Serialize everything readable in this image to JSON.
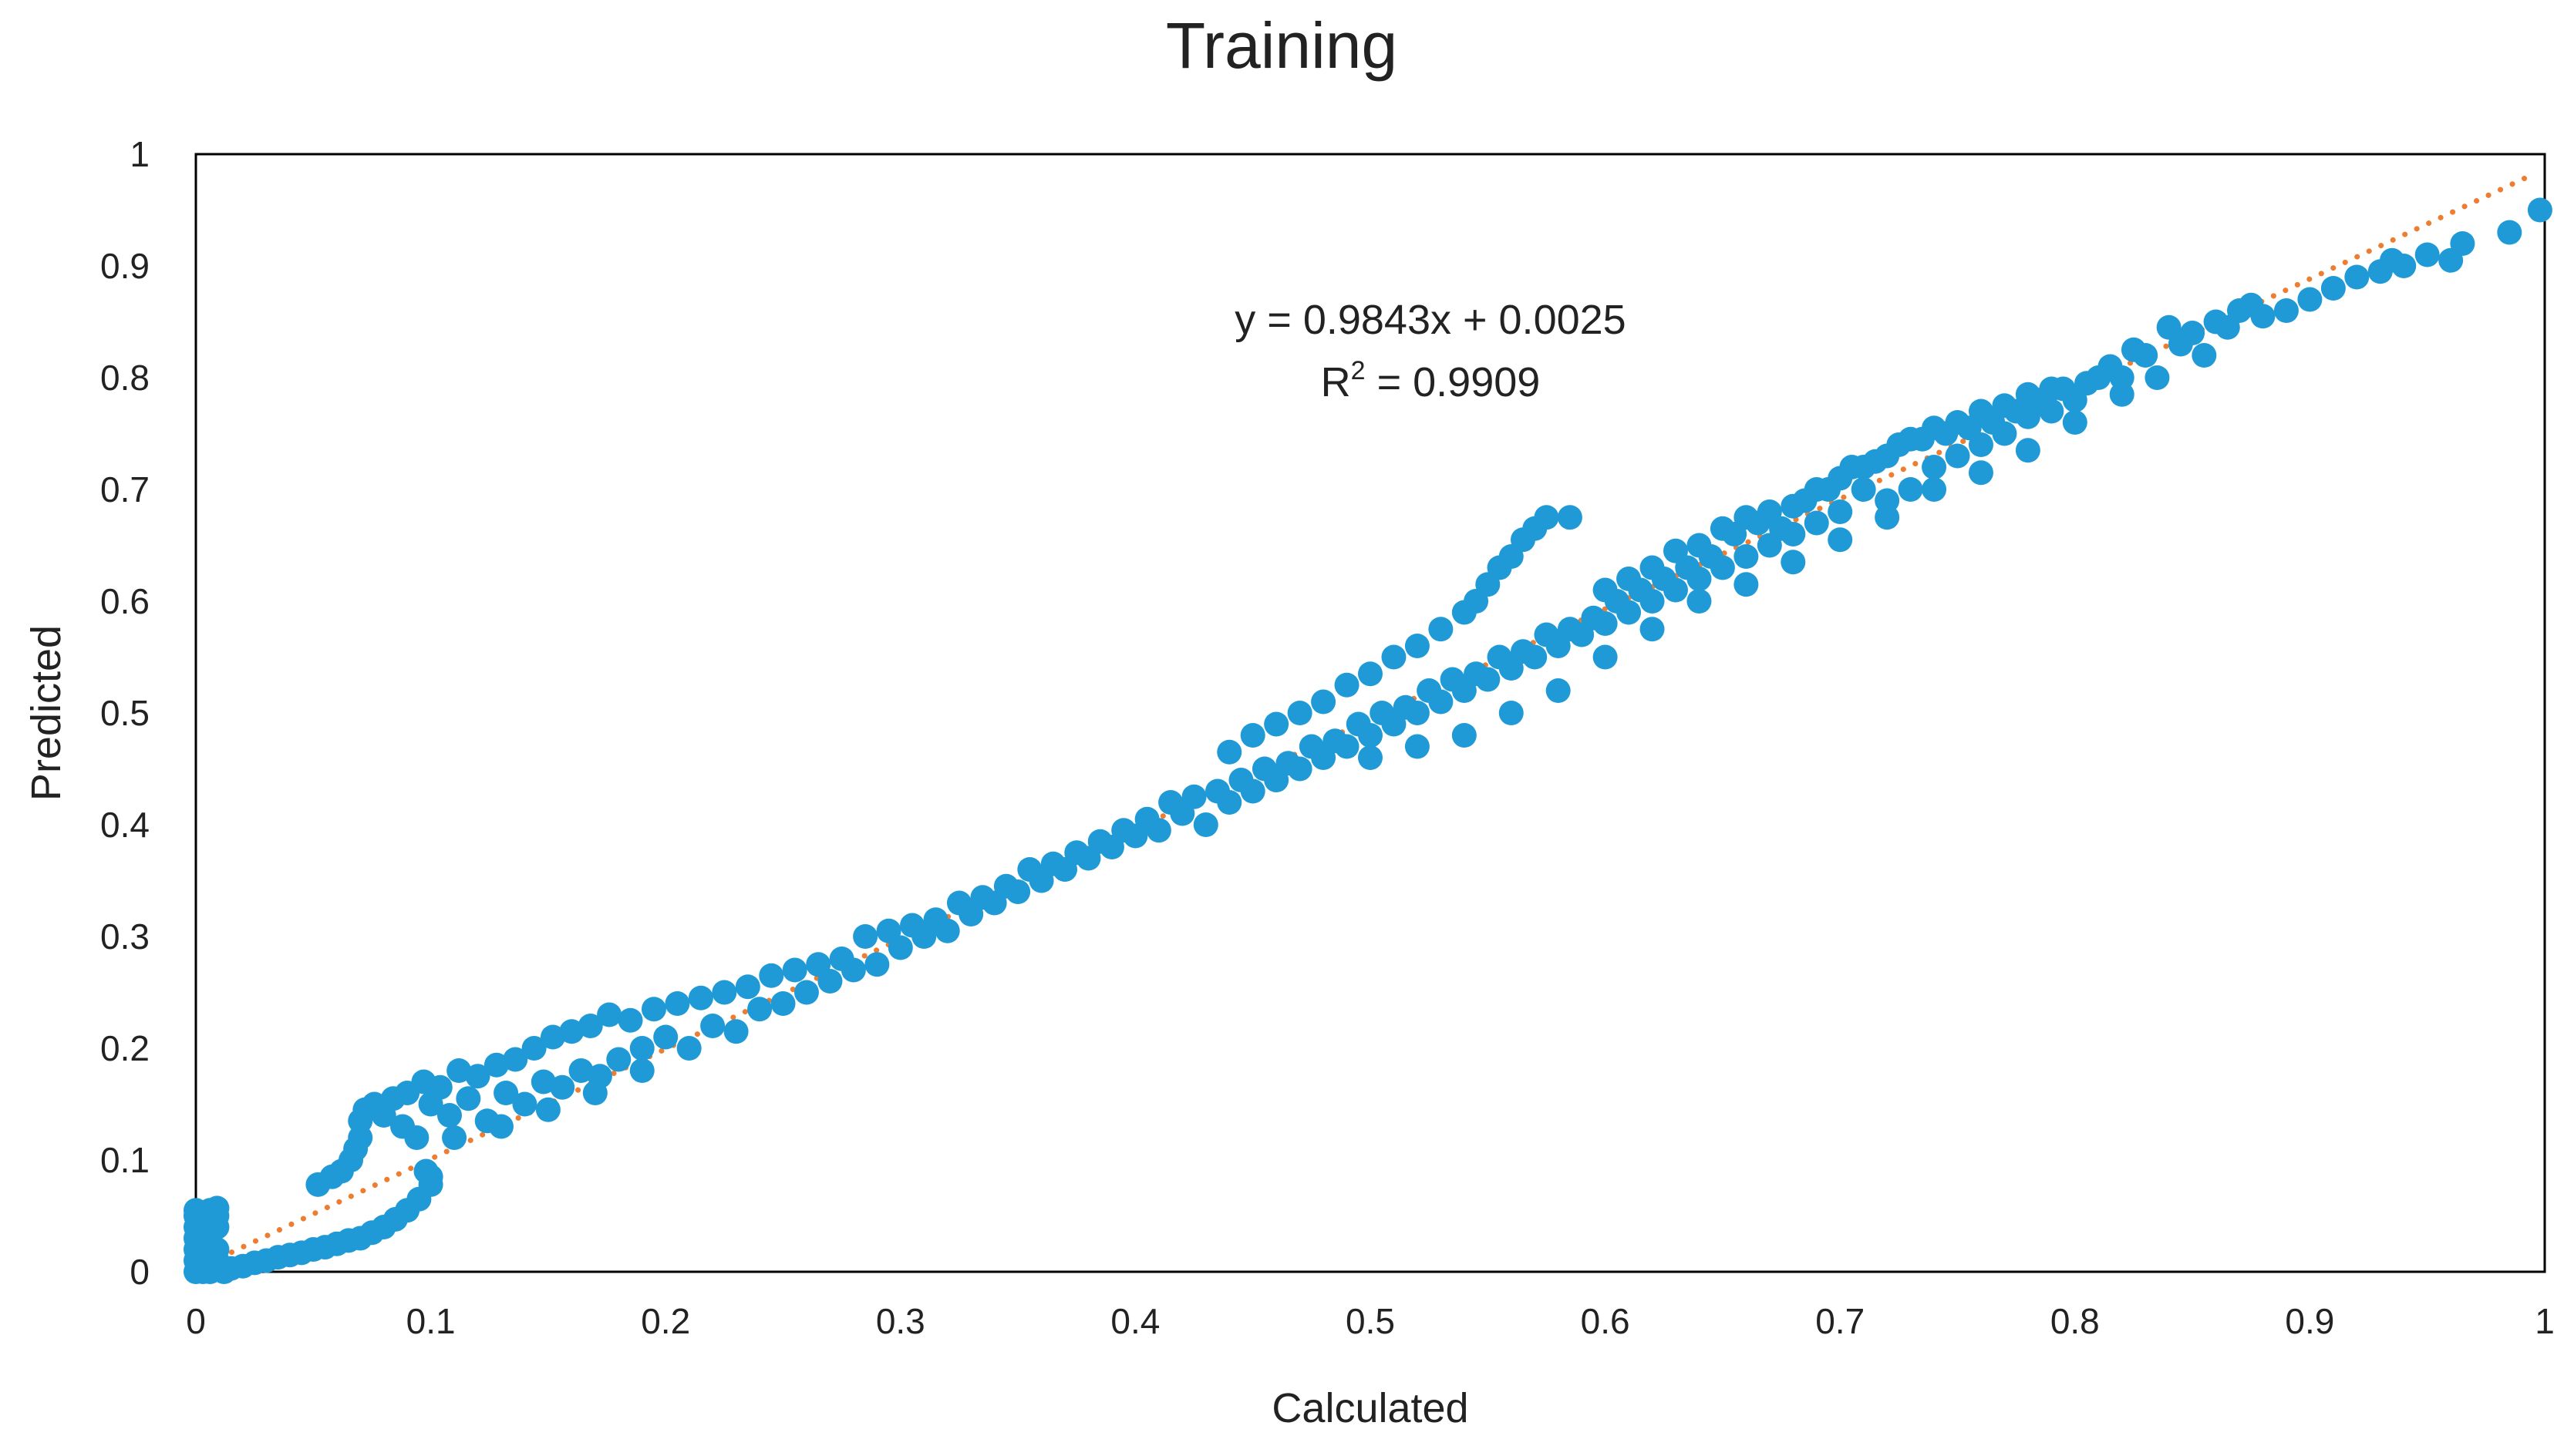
{
  "chart_data": {
    "type": "scatter",
    "title": "Training",
    "xlabel": "Calculated",
    "ylabel": "Predicted",
    "xlim": [
      0,
      1
    ],
    "ylim": [
      0,
      1
    ],
    "x_ticks": [
      "0",
      "0.1",
      "0.2",
      "0.3",
      "0.4",
      "0.5",
      "0.6",
      "0.7",
      "0.8",
      "0.9",
      "1"
    ],
    "y_ticks": [
      "0",
      "0.1",
      "0.2",
      "0.3",
      "0.4",
      "0.5",
      "0.6",
      "0.7",
      "0.8",
      "0.9",
      "1"
    ],
    "grid": false,
    "legend": "none",
    "colors": {
      "points": "#1f9ad6",
      "trendline": "#ed7d31",
      "frame": "#000000"
    },
    "trendline": {
      "style": "dotted",
      "slope": 0.9843,
      "intercept": 0.0025,
      "equation": "y = 0.9843x + 0.0025",
      "r2_label": "R",
      "r2_sup": "2",
      "r2_value": " = 0.9909"
    },
    "series": [
      {
        "points": [
          [
            0.0,
            0.0
          ],
          [
            0.0,
            0.01
          ],
          [
            0.0,
            0.02
          ],
          [
            0.0,
            0.03
          ],
          [
            0.0,
            0.04
          ],
          [
            0.0,
            0.05
          ],
          [
            0.0,
            0.055
          ],
          [
            0.003,
            0.0
          ],
          [
            0.003,
            0.01
          ],
          [
            0.003,
            0.02
          ],
          [
            0.003,
            0.03
          ],
          [
            0.003,
            0.04
          ],
          [
            0.003,
            0.05
          ],
          [
            0.006,
            0.0
          ],
          [
            0.006,
            0.01
          ],
          [
            0.006,
            0.02
          ],
          [
            0.006,
            0.03
          ],
          [
            0.006,
            0.045
          ],
          [
            0.006,
            0.055
          ],
          [
            0.009,
            0.01
          ],
          [
            0.009,
            0.02
          ],
          [
            0.009,
            0.04
          ],
          [
            0.009,
            0.05
          ],
          [
            0.009,
            0.057
          ],
          [
            0.012,
            0.0
          ],
          [
            0.015,
            0.003
          ],
          [
            0.02,
            0.005
          ],
          [
            0.025,
            0.008
          ],
          [
            0.03,
            0.01
          ],
          [
            0.035,
            0.013
          ],
          [
            0.04,
            0.015
          ],
          [
            0.045,
            0.017
          ],
          [
            0.05,
            0.02
          ],
          [
            0.055,
            0.022
          ],
          [
            0.06,
            0.025
          ],
          [
            0.065,
            0.028
          ],
          [
            0.07,
            0.03
          ],
          [
            0.075,
            0.035
          ],
          [
            0.08,
            0.04
          ],
          [
            0.085,
            0.047
          ],
          [
            0.09,
            0.055
          ],
          [
            0.095,
            0.065
          ],
          [
            0.1,
            0.078
          ],
          [
            0.1,
            0.085
          ],
          [
            0.098,
            0.09
          ],
          [
            0.052,
            0.078
          ],
          [
            0.058,
            0.085
          ],
          [
            0.062,
            0.09
          ],
          [
            0.066,
            0.1
          ],
          [
            0.068,
            0.11
          ],
          [
            0.07,
            0.12
          ],
          [
            0.07,
            0.135
          ],
          [
            0.072,
            0.145
          ],
          [
            0.076,
            0.15
          ],
          [
            0.08,
            0.14
          ],
          [
            0.084,
            0.155
          ],
          [
            0.088,
            0.13
          ],
          [
            0.09,
            0.16
          ],
          [
            0.094,
            0.12
          ],
          [
            0.097,
            0.17
          ],
          [
            0.1,
            0.15
          ],
          [
            0.104,
            0.165
          ],
          [
            0.108,
            0.14
          ],
          [
            0.112,
            0.18
          ],
          [
            0.116,
            0.155
          ],
          [
            0.12,
            0.175
          ],
          [
            0.124,
            0.135
          ],
          [
            0.128,
            0.185
          ],
          [
            0.132,
            0.16
          ],
          [
            0.136,
            0.19
          ],
          [
            0.14,
            0.15
          ],
          [
            0.144,
            0.2
          ],
          [
            0.148,
            0.17
          ],
          [
            0.152,
            0.21
          ],
          [
            0.156,
            0.165
          ],
          [
            0.16,
            0.215
          ],
          [
            0.164,
            0.18
          ],
          [
            0.168,
            0.22
          ],
          [
            0.172,
            0.175
          ],
          [
            0.176,
            0.23
          ],
          [
            0.18,
            0.19
          ],
          [
            0.11,
            0.12
          ],
          [
            0.13,
            0.13
          ],
          [
            0.15,
            0.145
          ],
          [
            0.17,
            0.16
          ],
          [
            0.19,
            0.18
          ],
          [
            0.185,
            0.225
          ],
          [
            0.19,
            0.2
          ],
          [
            0.195,
            0.235
          ],
          [
            0.2,
            0.21
          ],
          [
            0.205,
            0.24
          ],
          [
            0.21,
            0.2
          ],
          [
            0.215,
            0.245
          ],
          [
            0.22,
            0.22
          ],
          [
            0.225,
            0.25
          ],
          [
            0.23,
            0.215
          ],
          [
            0.235,
            0.255
          ],
          [
            0.24,
            0.235
          ],
          [
            0.245,
            0.265
          ],
          [
            0.25,
            0.24
          ],
          [
            0.255,
            0.27
          ],
          [
            0.26,
            0.25
          ],
          [
            0.265,
            0.275
          ],
          [
            0.27,
            0.26
          ],
          [
            0.275,
            0.28
          ],
          [
            0.28,
            0.27
          ],
          [
            0.285,
            0.3
          ],
          [
            0.29,
            0.275
          ],
          [
            0.295,
            0.305
          ],
          [
            0.3,
            0.29
          ],
          [
            0.305,
            0.31
          ],
          [
            0.31,
            0.3
          ],
          [
            0.315,
            0.315
          ],
          [
            0.32,
            0.305
          ],
          [
            0.325,
            0.33
          ],
          [
            0.33,
            0.32
          ],
          [
            0.335,
            0.335
          ],
          [
            0.34,
            0.33
          ],
          [
            0.345,
            0.345
          ],
          [
            0.35,
            0.34
          ],
          [
            0.355,
            0.36
          ],
          [
            0.36,
            0.35
          ],
          [
            0.365,
            0.365
          ],
          [
            0.37,
            0.36
          ],
          [
            0.375,
            0.375
          ],
          [
            0.38,
            0.37
          ],
          [
            0.385,
            0.385
          ],
          [
            0.39,
            0.38
          ],
          [
            0.395,
            0.395
          ],
          [
            0.4,
            0.39
          ],
          [
            0.405,
            0.405
          ],
          [
            0.41,
            0.395
          ],
          [
            0.415,
            0.42
          ],
          [
            0.42,
            0.41
          ],
          [
            0.425,
            0.425
          ],
          [
            0.43,
            0.4
          ],
          [
            0.435,
            0.43
          ],
          [
            0.44,
            0.42
          ],
          [
            0.445,
            0.44
          ],
          [
            0.45,
            0.43
          ],
          [
            0.455,
            0.45
          ],
          [
            0.46,
            0.44
          ],
          [
            0.465,
            0.455
          ],
          [
            0.47,
            0.45
          ],
          [
            0.475,
            0.47
          ],
          [
            0.48,
            0.46
          ],
          [
            0.485,
            0.475
          ],
          [
            0.49,
            0.47
          ],
          [
            0.495,
            0.49
          ],
          [
            0.5,
            0.48
          ],
          [
            0.505,
            0.5
          ],
          [
            0.51,
            0.49
          ],
          [
            0.515,
            0.505
          ],
          [
            0.52,
            0.5
          ],
          [
            0.525,
            0.52
          ],
          [
            0.53,
            0.51
          ],
          [
            0.535,
            0.53
          ],
          [
            0.54,
            0.52
          ],
          [
            0.545,
            0.535
          ],
          [
            0.55,
            0.53
          ],
          [
            0.555,
            0.55
          ],
          [
            0.56,
            0.54
          ],
          [
            0.565,
            0.555
          ],
          [
            0.57,
            0.55
          ],
          [
            0.575,
            0.57
          ],
          [
            0.58,
            0.56
          ],
          [
            0.585,
            0.575
          ],
          [
            0.59,
            0.57
          ],
          [
            0.595,
            0.585
          ],
          [
            0.6,
            0.58
          ],
          [
            0.605,
            0.6
          ],
          [
            0.61,
            0.59
          ],
          [
            0.615,
            0.61
          ],
          [
            0.62,
            0.6
          ],
          [
            0.625,
            0.62
          ],
          [
            0.63,
            0.61
          ],
          [
            0.635,
            0.63
          ],
          [
            0.64,
            0.62
          ],
          [
            0.645,
            0.64
          ],
          [
            0.65,
            0.63
          ],
          [
            0.655,
            0.66
          ],
          [
            0.66,
            0.64
          ],
          [
            0.665,
            0.67
          ],
          [
            0.67,
            0.65
          ],
          [
            0.675,
            0.665
          ],
          [
            0.68,
            0.66
          ],
          [
            0.685,
            0.69
          ],
          [
            0.69,
            0.67
          ],
          [
            0.695,
            0.7
          ],
          [
            0.7,
            0.68
          ],
          [
            0.705,
            0.72
          ],
          [
            0.71,
            0.7
          ],
          [
            0.715,
            0.725
          ],
          [
            0.72,
            0.69
          ],
          [
            0.725,
            0.74
          ],
          [
            0.73,
            0.7
          ],
          [
            0.735,
            0.745
          ],
          [
            0.74,
            0.72
          ],
          [
            0.745,
            0.75
          ],
          [
            0.75,
            0.73
          ],
          [
            0.755,
            0.755
          ],
          [
            0.76,
            0.74
          ],
          [
            0.765,
            0.76
          ],
          [
            0.77,
            0.75
          ],
          [
            0.775,
            0.77
          ],
          [
            0.78,
            0.765
          ],
          [
            0.785,
            0.78
          ],
          [
            0.79,
            0.77
          ],
          [
            0.795,
            0.79
          ],
          [
            0.8,
            0.78
          ],
          [
            0.805,
            0.795
          ],
          [
            0.81,
            0.8
          ],
          [
            0.815,
            0.81
          ],
          [
            0.82,
            0.8
          ],
          [
            0.825,
            0.825
          ],
          [
            0.83,
            0.82
          ],
          [
            0.835,
            0.8
          ],
          [
            0.84,
            0.845
          ],
          [
            0.845,
            0.83
          ],
          [
            0.85,
            0.84
          ],
          [
            0.855,
            0.82
          ],
          [
            0.86,
            0.85
          ],
          [
            0.865,
            0.845
          ],
          [
            0.87,
            0.86
          ],
          [
            0.875,
            0.865
          ],
          [
            0.88,
            0.855
          ],
          [
            0.89,
            0.86
          ],
          [
            0.9,
            0.87
          ],
          [
            0.91,
            0.88
          ],
          [
            0.92,
            0.89
          ],
          [
            0.93,
            0.895
          ],
          [
            0.935,
            0.905
          ],
          [
            0.94,
            0.9
          ],
          [
            0.95,
            0.91
          ],
          [
            0.96,
            0.905
          ],
          [
            0.965,
            0.92
          ],
          [
            0.985,
            0.93
          ],
          [
            0.998,
            0.95
          ],
          [
            0.44,
            0.465
          ],
          [
            0.45,
            0.48
          ],
          [
            0.46,
            0.49
          ],
          [
            0.47,
            0.5
          ],
          [
            0.48,
            0.51
          ],
          [
            0.49,
            0.525
          ],
          [
            0.5,
            0.535
          ],
          [
            0.51,
            0.55
          ],
          [
            0.52,
            0.56
          ],
          [
            0.53,
            0.575
          ],
          [
            0.54,
            0.59
          ],
          [
            0.545,
            0.6
          ],
          [
            0.55,
            0.615
          ],
          [
            0.555,
            0.63
          ],
          [
            0.56,
            0.64
          ],
          [
            0.565,
            0.655
          ],
          [
            0.57,
            0.665
          ],
          [
            0.575,
            0.675
          ],
          [
            0.585,
            0.675
          ],
          [
            0.6,
            0.61
          ],
          [
            0.61,
            0.62
          ],
          [
            0.62,
            0.63
          ],
          [
            0.63,
            0.645
          ],
          [
            0.64,
            0.65
          ],
          [
            0.65,
            0.665
          ],
          [
            0.66,
            0.675
          ],
          [
            0.67,
            0.68
          ],
          [
            0.68,
            0.685
          ],
          [
            0.69,
            0.7
          ],
          [
            0.7,
            0.71
          ],
          [
            0.71,
            0.72
          ],
          [
            0.72,
            0.73
          ],
          [
            0.73,
            0.745
          ],
          [
            0.74,
            0.755
          ],
          [
            0.75,
            0.76
          ],
          [
            0.76,
            0.77
          ],
          [
            0.77,
            0.775
          ],
          [
            0.78,
            0.785
          ],
          [
            0.79,
            0.79
          ],
          [
            0.5,
            0.46
          ],
          [
            0.52,
            0.47
          ],
          [
            0.54,
            0.48
          ],
          [
            0.56,
            0.5
          ],
          [
            0.58,
            0.52
          ],
          [
            0.6,
            0.55
          ],
          [
            0.62,
            0.575
          ],
          [
            0.64,
            0.6
          ],
          [
            0.66,
            0.615
          ],
          [
            0.68,
            0.635
          ],
          [
            0.7,
            0.655
          ],
          [
            0.72,
            0.675
          ],
          [
            0.74,
            0.7
          ],
          [
            0.76,
            0.715
          ],
          [
            0.78,
            0.735
          ],
          [
            0.8,
            0.76
          ],
          [
            0.82,
            0.785
          ]
        ]
      }
    ],
    "annotation_lines": [
      "y = 0.9843x + 0.0025"
    ]
  }
}
